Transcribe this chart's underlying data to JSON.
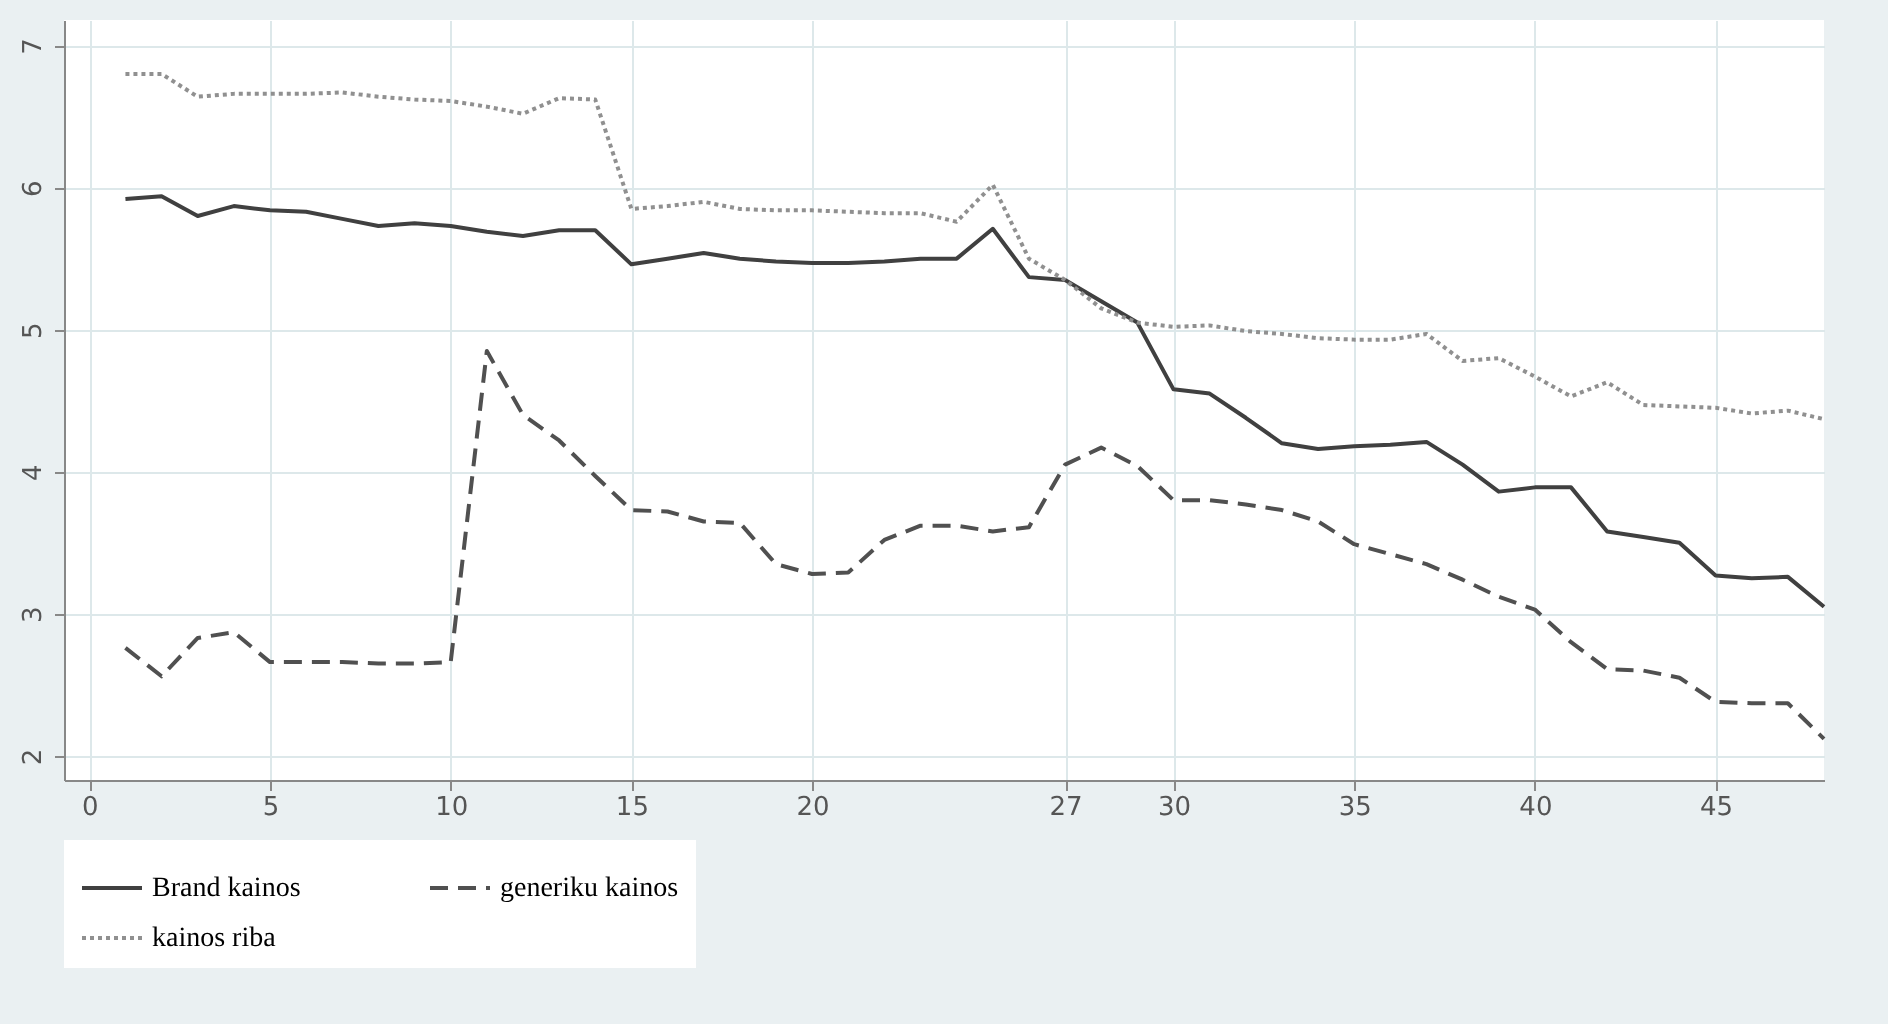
{
  "chart_data": {
    "type": "line",
    "x": [
      1,
      2,
      3,
      4,
      5,
      6,
      7,
      8,
      9,
      10,
      11,
      12,
      13,
      14,
      15,
      16,
      17,
      18,
      19,
      20,
      21,
      22,
      23,
      24,
      25,
      26,
      27,
      28,
      29,
      30,
      31,
      32,
      33,
      34,
      35,
      36,
      37,
      38,
      39,
      40,
      41,
      42,
      43,
      44,
      45,
      46,
      47,
      48
    ],
    "series": [
      {
        "name": "Brand kainos",
        "color": "#404040",
        "line_style": "solid",
        "values": [
          5.92,
          5.94,
          5.8,
          5.87,
          5.84,
          5.83,
          5.78,
          5.73,
          5.75,
          5.73,
          5.69,
          5.66,
          5.7,
          5.7,
          5.46,
          5.5,
          5.54,
          5.5,
          5.48,
          5.47,
          5.47,
          5.48,
          5.5,
          5.5,
          5.71,
          5.37,
          5.35,
          5.2,
          5.05,
          4.58,
          4.55,
          4.38,
          4.2,
          4.16,
          4.18,
          4.19,
          4.21,
          4.05,
          3.86,
          3.89,
          3.89,
          3.58,
          3.54,
          3.5,
          3.27,
          3.25,
          3.26,
          3.05
        ]
      },
      {
        "name": "generiku kainos",
        "color": "#505050",
        "line_style": "dashed",
        "values": [
          2.76,
          2.56,
          2.83,
          2.87,
          2.66,
          2.66,
          2.66,
          2.65,
          2.65,
          2.66,
          4.85,
          4.4,
          4.22,
          3.97,
          3.73,
          3.72,
          3.65,
          3.64,
          3.35,
          3.28,
          3.29,
          3.52,
          3.62,
          3.62,
          3.58,
          3.61,
          4.05,
          4.17,
          4.04,
          3.8,
          3.8,
          3.77,
          3.73,
          3.65,
          3.49,
          3.42,
          3.35,
          3.24,
          3.12,
          3.03,
          2.8,
          2.61,
          2.6,
          2.55,
          2.38,
          2.37,
          2.37,
          2.12
        ]
      },
      {
        "name": "kainos riba",
        "color": "#909090",
        "line_style": "dotted",
        "values": [
          6.8,
          6.8,
          6.64,
          6.66,
          6.66,
          6.66,
          6.67,
          6.64,
          6.62,
          6.61,
          6.57,
          6.52,
          6.63,
          6.62,
          5.85,
          5.87,
          5.9,
          5.85,
          5.84,
          5.84,
          5.83,
          5.82,
          5.82,
          5.76,
          6.02,
          5.5,
          5.35,
          5.15,
          5.05,
          5.02,
          5.03,
          4.99,
          4.97,
          4.94,
          4.93,
          4.93,
          4.97,
          4.78,
          4.8,
          4.67,
          4.53,
          4.63,
          4.47,
          4.46,
          4.45,
          4.41,
          4.43,
          4.37
        ]
      }
    ],
    "xlim": [
      -0.7,
      48
    ],
    "xticks": [
      0,
      5,
      10,
      15,
      20,
      27,
      30,
      35,
      40,
      45
    ],
    "ylim": [
      1.83,
      7.18
    ],
    "yticks": [
      2,
      3,
      4,
      5,
      6,
      7
    ],
    "grid": true,
    "legend": "bottom",
    "marker": "none"
  }
}
